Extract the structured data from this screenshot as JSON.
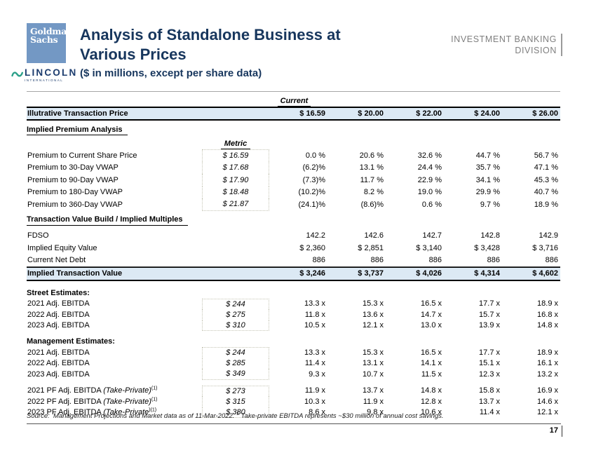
{
  "colors": {
    "navy": "#17365d",
    "gs-blue": "#7398c4",
    "highlight": "#dce9f4",
    "gray": "#7f7f7f",
    "green": "#2ca089"
  },
  "header": {
    "gs_logo": {
      "line1": "Goldman",
      "line2": "Sachs"
    },
    "lincoln_logo": {
      "name": "LINCOLN",
      "sub": "INTERNATIONAL"
    },
    "title": "Analysis of Standalone Business at Various Prices",
    "subtitle": "($ in millions, except per share data)",
    "division": {
      "line1": "INVESTMENT BANKING",
      "line2": "DIVISION"
    }
  },
  "table": {
    "current_label": "Current",
    "price_row": {
      "label": "Illutrative Transaction Price",
      "values": [
        "$ 16.59",
        "$ 20.00",
        "$ 22.00",
        "$ 24.00",
        "$ 26.00"
      ]
    },
    "sections": [
      {
        "heading": "Implied Premium Analysis",
        "heading_underline": true,
        "metric_header": "Metric",
        "rows": [
          {
            "label": "Premium to Current Share Price",
            "metric": "$ 16.59",
            "values": [
              "0.0 %",
              "20.6 %",
              "32.6 %",
              "44.7 %",
              "56.7 %"
            ]
          },
          {
            "label": "Premium to 30-Day VWAP",
            "metric": "$ 17.68",
            "values": [
              "(6.2)%",
              "13.1 %",
              "24.4 %",
              "35.7 %",
              "47.1 %"
            ]
          },
          {
            "label": "Premium to 90-Day VWAP",
            "metric": "$ 17.90",
            "values": [
              "(7.3)%",
              "11.7 %",
              "22.9 %",
              "34.1 %",
              "45.3 %"
            ]
          },
          {
            "label": "Premium to 180-Day VWAP",
            "metric": "$ 18.48",
            "values": [
              "(10.2)%",
              "8.2 %",
              "19.0 %",
              "29.9 %",
              "40.7 %"
            ]
          },
          {
            "label": "Premium to 360-Day VWAP",
            "metric": "$ 21.87",
            "values": [
              "(24.1)%",
              "(8.6)%",
              "0.6 %",
              "9.7 %",
              "18.9 %"
            ]
          }
        ]
      },
      {
        "heading": "Transaction Value Build / Implied Multiples",
        "heading_underline": true,
        "rows": [
          {
            "label": "FDSO",
            "values": [
              "142.2",
              "142.6",
              "142.7",
              "142.8",
              "142.9"
            ]
          },
          {
            "label": "Implied Equity Value",
            "values": [
              "$ 2,360",
              "$ 2,851",
              "$ 3,140",
              "$ 3,428",
              "$ 3,716"
            ]
          },
          {
            "label": "Current Net Debt",
            "rule_bottom": true,
            "values": [
              "886",
              "886",
              "886",
              "886",
              "886"
            ]
          },
          {
            "label": "Implied Transaction Value",
            "highlight": true,
            "values": [
              "$ 3,246",
              "$ 3,737",
              "$ 4,026",
              "$ 4,314",
              "$ 4,602"
            ]
          }
        ]
      },
      {
        "heading": "Street Estimates:",
        "heading_underline": false,
        "rows": [
          {
            "label": "2021 Adj. EBITDA",
            "metric": "$ 244",
            "values": [
              "13.3 x",
              "15.3 x",
              "16.5 x",
              "17.7 x",
              "18.9 x"
            ]
          },
          {
            "label": "2022 Adj. EBITDA",
            "metric": "$ 275",
            "values": [
              "11.8 x",
              "13.6 x",
              "14.7 x",
              "15.7 x",
              "16.8 x"
            ]
          },
          {
            "label": "2023 Adj. EBITDA",
            "metric": "$ 310",
            "values": [
              "10.5 x",
              "12.1 x",
              "13.0 x",
              "13.9 x",
              "14.8 x"
            ]
          }
        ]
      },
      {
        "heading": "Management Estimates:",
        "heading_underline": false,
        "rows": [
          {
            "label": "2021 Adj. EBITDA",
            "metric": "$ 244",
            "values": [
              "13.3 x",
              "15.3 x",
              "16.5 x",
              "17.7 x",
              "18.9 x"
            ]
          },
          {
            "label": "2022 Adj. EBITDA",
            "metric": "$ 285",
            "values": [
              "11.4 x",
              "13.1 x",
              "14.1 x",
              "15.1 x",
              "16.1 x"
            ]
          },
          {
            "label": "2023 Adj. EBITDA",
            "metric": "$ 349",
            "values": [
              "9.3 x",
              "10.7 x",
              "11.5 x",
              "12.3 x",
              "13.2 x"
            ]
          }
        ]
      },
      {
        "heading": null,
        "rows": [
          {
            "label": "2021 PF Adj. EBITDA ",
            "label_italic": "(Take-Private)",
            "sup": "(1)",
            "metric": "$ 273",
            "values": [
              "11.9 x",
              "13.7 x",
              "14.8 x",
              "15.8 x",
              "16.9 x"
            ]
          },
          {
            "label": "2022 PF Adj. EBITDA ",
            "label_italic": "(Take-Private)",
            "sup": "(1)",
            "metric": "$ 315",
            "values": [
              "10.3 x",
              "11.9 x",
              "12.8 x",
              "13.7 x",
              "14.6 x"
            ]
          },
          {
            "label": "2023 PF Adj. EBITDA ",
            "label_italic": "(Take-Private",
            "sup": ")(1)",
            "metric": "$ 380",
            "values": [
              "8.6 x",
              "9.8 x",
              "10.6 x",
              "11.4 x",
              "12.1 x"
            ]
          }
        ]
      }
    ]
  },
  "footer": {
    "source_label": "Source:",
    "source_text": "Management Projections and Market data as of 11-Mar-2022.",
    "footnote_sup": "1",
    "footnote_text": "Take-private EBITDA represents ~$30 million of annual cost savings.",
    "page_number": "17"
  }
}
